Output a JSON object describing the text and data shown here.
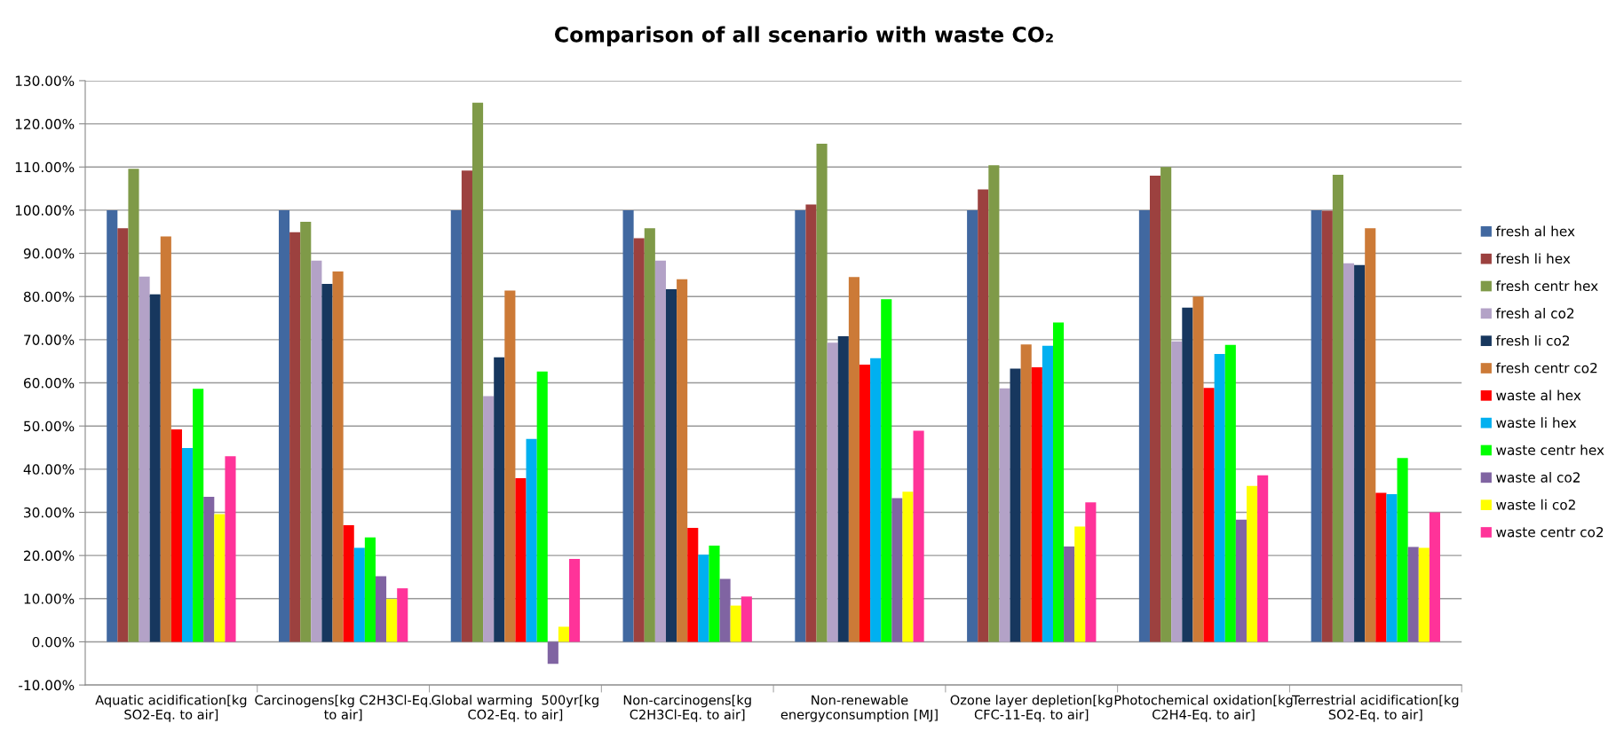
{
  "chart_data": {
    "type": "bar",
    "title": "Comparison of all scenario with waste CO₂",
    "categories": [
      "Aquatic acidification[kg\nSO2-Eq. to air]",
      "Carcinogens[kg C2H3Cl-Eq.\nto air]",
      "Global warming  500yr[kg\nCO2-Eq. to air]",
      "Non-carcinogens[kg\nC2H3Cl-Eq. to air]",
      "Non-renewable\nenergyconsumption [MJ]",
      "Ozone layer depletion[kg\nCFC-11-Eq. to air]",
      "Photochemical oxidation[kg\nC2H4-Eq. to air]",
      "Terrestrial acidification[kg\nSO2-Eq. to air]"
    ],
    "series": [
      {
        "name": "fresh al hex",
        "color": "#4168a0",
        "values": [
          100,
          100,
          100,
          100,
          100,
          100,
          100,
          100
        ]
      },
      {
        "name": "fresh li hex",
        "color": "#9c413f",
        "values": [
          95.8,
          94.9,
          109.2,
          93.5,
          101.3,
          104.8,
          108.0,
          99.9
        ]
      },
      {
        "name": "fresh centr hex",
        "color": "#7f9a48",
        "values": [
          109.6,
          97.3,
          124.9,
          95.8,
          115.4,
          110.4,
          110.0,
          108.2
        ]
      },
      {
        "name": "fresh al co2",
        "color": "#b3a2c7",
        "values": [
          84.6,
          88.3,
          56.9,
          88.3,
          69.3,
          58.7,
          69.6,
          87.7
        ]
      },
      {
        "name": "fresh li co2",
        "color": "#17375e",
        "values": [
          80.5,
          82.9,
          65.9,
          81.7,
          70.8,
          63.3,
          77.4,
          87.3
        ]
      },
      {
        "name": "fresh centr co2",
        "color": "#cc7a37",
        "values": [
          93.9,
          85.8,
          81.4,
          84.0,
          84.5,
          68.9,
          80.0,
          95.8
        ]
      },
      {
        "name": "waste al hex",
        "color": "#ff0000",
        "values": [
          49.2,
          27.0,
          37.9,
          26.4,
          64.2,
          63.6,
          58.8,
          34.5
        ]
      },
      {
        "name": "waste li hex",
        "color": "#00b0f0",
        "values": [
          44.9,
          21.8,
          47.0,
          20.2,
          65.7,
          68.6,
          66.7,
          34.2
        ]
      },
      {
        "name": "waste centr hex",
        "color": "#00ff00",
        "values": [
          58.6,
          24.2,
          62.6,
          22.3,
          79.4,
          74.0,
          68.8,
          42.6
        ]
      },
      {
        "name": "waste al co2",
        "color": "#8064a2",
        "values": [
          33.6,
          15.2,
          -5.1,
          14.6,
          33.3,
          22.1,
          28.3,
          22.0
        ]
      },
      {
        "name": "waste li co2",
        "color": "#ffff00",
        "values": [
          29.6,
          9.9,
          3.5,
          8.4,
          34.8,
          26.7,
          36.1,
          21.8
        ]
      },
      {
        "name": "waste centr co2",
        "color": "#ff3399",
        "values": [
          43.0,
          12.4,
          19.2,
          10.5,
          48.9,
          32.3,
          38.6,
          30.0
        ]
      }
    ],
    "ylim": [
      -10,
      130
    ],
    "yticks": [
      {
        "value": -10,
        "label": "-10.00%"
      },
      {
        "value": 0,
        "label": "0.00%"
      },
      {
        "value": 10,
        "label": "10.00%"
      },
      {
        "value": 20,
        "label": "20.00%"
      },
      {
        "value": 30,
        "label": "30.00%"
      },
      {
        "value": 40,
        "label": "40.00%"
      },
      {
        "value": 50,
        "label": "50.00%"
      },
      {
        "value": 60,
        "label": "60.00%"
      },
      {
        "value": 70,
        "label": "70.00%"
      },
      {
        "value": 80,
        "label": "80.00%"
      },
      {
        "value": 90,
        "label": "90.00%"
      },
      {
        "value": 100,
        "label": "100.00%"
      },
      {
        "value": 110,
        "label": "110.00%"
      },
      {
        "value": 120,
        "label": "120.00%"
      },
      {
        "value": 130,
        "label": "130.00%"
      }
    ],
    "grid": "y",
    "legend": "right"
  }
}
